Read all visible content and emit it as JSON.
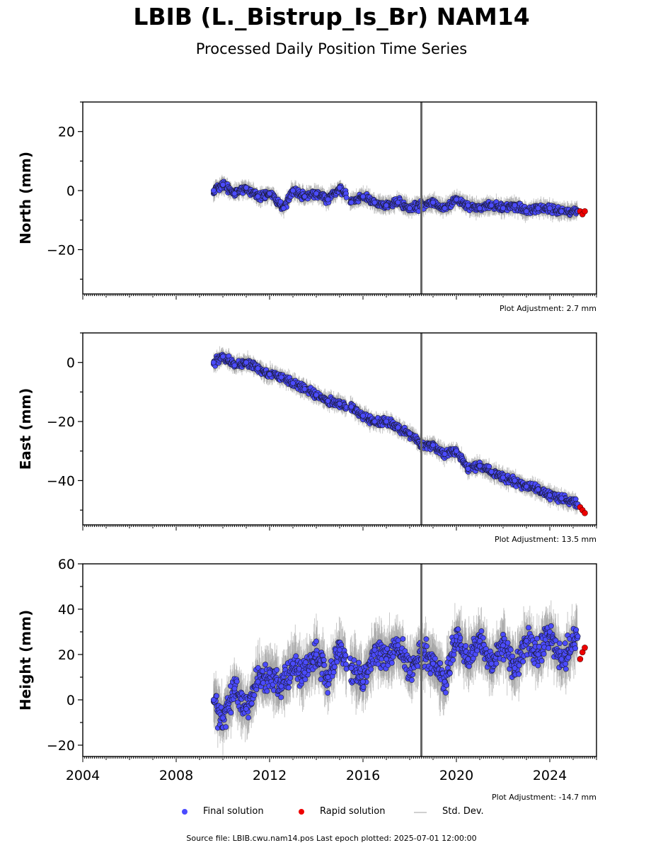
{
  "title": "LBIB (L._Bistrup_Is_Br) NAM14",
  "subtitle": "Processed Daily Position Time Series",
  "footer": "Source file: LBIB.cwu.nam14.pos  Last epoch plotted: 2025-07-01 12:00:00",
  "legend": {
    "final": "Final solution",
    "rapid": "Rapid solution",
    "std": "Std. Dev."
  },
  "colors": {
    "final": "#4b4bff",
    "rapid": "#ee0000",
    "std": "#9a9a9a",
    "marker_edge": "#1a1a33",
    "event_line": "#666666"
  },
  "chart_data": [
    {
      "type": "scatter",
      "component": "North",
      "ylabel": "North (mm)",
      "ylim": [
        -35,
        30
      ],
      "yticks": [
        -20,
        0,
        20
      ],
      "xlim": [
        2004,
        2026
      ],
      "event_line_x": 2018.5,
      "plot_adjustment": "Plot Adjustment: 2.7 mm",
      "series": [
        {
          "name": "Final solution",
          "x": [
            2009.6,
            2010.0,
            2010.5,
            2011.0,
            2011.5,
            2012.0,
            2012.6,
            2013.0,
            2013.5,
            2014.0,
            2014.5,
            2015.0,
            2015.5,
            2016.0,
            2016.5,
            2017.0,
            2017.5,
            2018.0,
            2018.5,
            2019.0,
            2019.5,
            2020.0,
            2020.5,
            2021.0,
            2021.5,
            2022.0,
            2022.5,
            2023.0,
            2023.5,
            2024.0,
            2024.5,
            2025.2
          ],
          "y": [
            0,
            2,
            -1,
            1,
            -2,
            -1,
            -6,
            0,
            -2,
            -1,
            -3,
            1,
            -4,
            -2,
            -4,
            -5,
            -4,
            -6,
            -5,
            -4,
            -6,
            -3,
            -5,
            -6,
            -5,
            -6,
            -5,
            -7,
            -6,
            -6,
            -7,
            -7
          ]
        },
        {
          "name": "Rapid solution",
          "x": [
            2025.3,
            2025.4,
            2025.5
          ],
          "y": [
            -7,
            -8,
            -7
          ]
        }
      ]
    },
    {
      "type": "scatter",
      "component": "East",
      "ylabel": "East (mm)",
      "ylim": [
        -55,
        10
      ],
      "yticks": [
        -40,
        -20,
        0
      ],
      "xlim": [
        2004,
        2026
      ],
      "event_line_x": 2018.5,
      "plot_adjustment": "Plot Adjustment: 13.5 mm",
      "series": [
        {
          "name": "Final solution",
          "x": [
            2009.6,
            2010.0,
            2010.5,
            2011.0,
            2011.5,
            2012.0,
            2012.5,
            2013.0,
            2013.5,
            2014.0,
            2014.5,
            2015.0,
            2015.5,
            2016.0,
            2016.5,
            2017.0,
            2017.5,
            2018.0,
            2018.5,
            2019.0,
            2019.5,
            2020.0,
            2020.5,
            2021.0,
            2021.5,
            2022.0,
            2022.5,
            2023.0,
            2023.5,
            2024.0,
            2024.5,
            2025.2
          ],
          "y": [
            0,
            2,
            -1,
            0,
            -2,
            -4,
            -5,
            -7,
            -9,
            -11,
            -13,
            -14,
            -15,
            -18,
            -20,
            -20,
            -22,
            -24,
            -28,
            -28,
            -31,
            -30,
            -36,
            -35,
            -37,
            -39,
            -40,
            -42,
            -43,
            -45,
            -46,
            -48
          ]
        },
        {
          "name": "Rapid solution",
          "x": [
            2025.3,
            2025.4,
            2025.5
          ],
          "y": [
            -49,
            -50,
            -51
          ]
        }
      ]
    },
    {
      "type": "scatter",
      "component": "Height",
      "ylabel": "Height (mm)",
      "ylim": [
        -25,
        60
      ],
      "yticks": [
        -20,
        0,
        20,
        40,
        60
      ],
      "xlim": [
        2004,
        2026
      ],
      "xticks": [
        2004,
        2008,
        2012,
        2016,
        2020,
        2024
      ],
      "event_line_x": 2018.5,
      "plot_adjustment": "Plot Adjustment: -14.7 mm",
      "series": [
        {
          "name": "Final solution",
          "x": [
            2009.6,
            2010.0,
            2010.5,
            2011.0,
            2011.5,
            2012.0,
            2012.5,
            2013.0,
            2013.5,
            2014.0,
            2014.5,
            2015.0,
            2015.5,
            2016.0,
            2016.5,
            2017.0,
            2017.5,
            2018.0,
            2018.5,
            2019.0,
            2019.5,
            2020.0,
            2020.5,
            2021.0,
            2021.5,
            2022.0,
            2022.5,
            2023.0,
            2023.5,
            2024.0,
            2024.5,
            2025.2
          ],
          "y": [
            0,
            -8,
            5,
            -4,
            8,
            12,
            6,
            16,
            12,
            20,
            10,
            22,
            14,
            8,
            22,
            18,
            24,
            12,
            22,
            16,
            8,
            28,
            18,
            26,
            16,
            24,
            14,
            26,
            20,
            30,
            18,
            28
          ]
        },
        {
          "name": "Rapid solution",
          "x": [
            2025.3,
            2025.4,
            2025.5
          ],
          "y": [
            18,
            21,
            23
          ]
        }
      ]
    }
  ]
}
